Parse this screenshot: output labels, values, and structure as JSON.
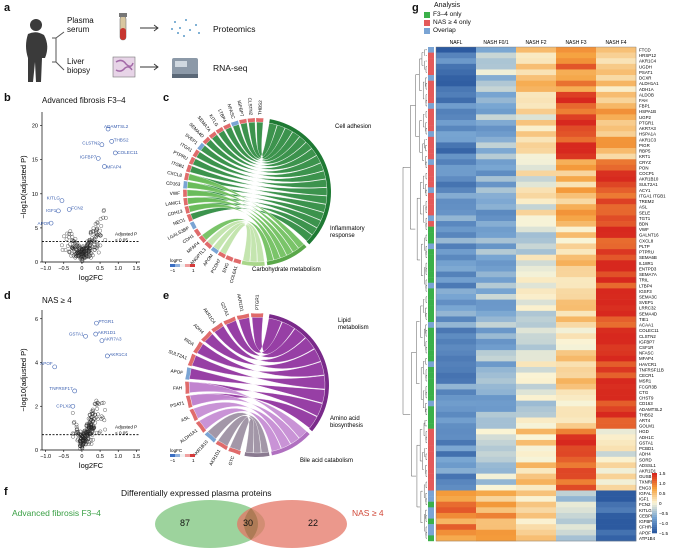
{
  "panels": {
    "a": {
      "letter": "a",
      "plasma_label": "Plasma\nserum",
      "liver_label": "Liver\nbiopsy",
      "proteomics_label": "Proteomics",
      "rnaseq_label": "RNA-seq"
    },
    "b": {
      "letter": "b",
      "title": "Advanced fibrosis F3–4",
      "ylabel": "−log10(adjusted P)",
      "xlabel": "log2FC",
      "threshold_label": "Adjusted P\n< 0.05",
      "x_ticks": [
        "−1.0",
        "−0.5",
        "0",
        "0.5",
        "1.0",
        "1.5"
      ],
      "y_ticks": [
        "0",
        "5",
        "10",
        "15",
        "20"
      ],
      "highlighted_genes": [
        "ADAMTSL2",
        "THBS2",
        "CLSTN2",
        "COLEC11",
        "IGFBP7",
        "MFAP4",
        "KITLG",
        "IGF1",
        "FCN2",
        "APOF"
      ]
    },
    "c": {
      "letter": "c",
      "categories": [
        "Cell adhesion",
        "Inflammatory\nresponse",
        "Carbohydrate metabolism"
      ],
      "genes": [
        "THBS2",
        "CLSTN2",
        "IGFBP7",
        "NFASC",
        "LTBP4",
        "KITLG",
        "SEMA7A",
        "SEMA4D",
        "SVEP1",
        "ITGA1",
        "PTPRU",
        "ITGB1",
        "CXCL8",
        "CD163",
        "VWF",
        "LAMC1",
        "CDH13",
        "NEO1",
        "LGALS3BP",
        "CDH1",
        "MFAP4",
        "ANGPTL3",
        "APOM",
        "PCDH7",
        "ENG",
        "COL6A1"
      ],
      "logfc_legend_title": "logFC",
      "logfc_legend_ticks": [
        "−1",
        "1"
      ]
    },
    "d": {
      "letter": "d",
      "title": "NAS ≥ 4",
      "ylabel": "−log10(adjusted P)",
      "xlabel": "log2FC",
      "threshold_label": "Adjusted P\n< 0.05",
      "x_ticks": [
        "−1.0",
        "−0.5",
        "0",
        "0.5",
        "1.0",
        "1.5"
      ],
      "y_ticks": [
        "0",
        "2",
        "4",
        "6"
      ],
      "highlighted_genes": [
        "GSTA1",
        "PTGR1",
        "AKR1D1",
        "AKR7A3",
        "AKR1C4",
        "APOF",
        "TNFRSF17",
        "CPLX2"
      ]
    },
    "e": {
      "letter": "e",
      "categories": [
        "Lipid\nmetabolism",
        "Amino acid\nbiosynthesis",
        "Bile acid catabolism"
      ],
      "genes": [
        "PTGR1",
        "AKR1D1",
        "GSTA1",
        "AKR1C4",
        "ADH4",
        "RIDA",
        "SULT2A1",
        "APOF",
        "FAH",
        "PSAT1",
        "ASL",
        "ALDH1A1",
        "AKR1B10",
        "AKR1D1",
        "GTC"
      ],
      "logfc_legend_title": "logFC",
      "logfc_legend_ticks": [
        "−1",
        "1"
      ]
    },
    "f": {
      "letter": "f",
      "title": "Differentially expressed plasma proteins",
      "left_label": "Advanced fibrosis F3–4",
      "right_label": "NAS ≥ 4",
      "left_only": "87",
      "overlap": "30",
      "right_only": "22"
    },
    "g": {
      "letter": "g",
      "analysis_title": "Analysis",
      "legend": [
        {
          "label": "F3–4 only",
          "color": "#3bb04a"
        },
        {
          "label": "NAS ≥ 4 only",
          "color": "#e45a5a"
        },
        {
          "label": "Overlap",
          "color": "#7aa4d4"
        }
      ],
      "columns": [
        "NAFL",
        "NASH F0/1",
        "NASH F2",
        "NASH F3",
        "NASH F4"
      ],
      "rows": [
        "FTCD",
        "HRSP12",
        "AKR1C4",
        "UGDH",
        "PSAT1",
        "DCXR",
        "ALDH1A1",
        "ADH1A",
        "ALDOB",
        "FAH",
        "FBP1",
        "HSPA1B",
        "UGP2",
        "PTGR1",
        "AKR7A3",
        "HSPA1A",
        "AKR1C3",
        "PIGR",
        "RBP5",
        "KRT1",
        "CRYZ",
        "PON",
        "COCP1",
        "AKR1B10",
        "SULT2A1",
        "ACY1",
        "ITGA1 ITGB1",
        "TREM2",
        "ASL",
        "SELE",
        "TGT1",
        "BDN",
        "VWF",
        "GALNT16",
        "CXCL8",
        "PLTP",
        "PTPRU",
        "SEMA6B",
        "IL18R1",
        "ENTPD3",
        "SEMA7A",
        "TRIL",
        "LTBP4",
        "IGSF3",
        "SEMA3C",
        "SVEP1",
        "LRRC32",
        "SEMA4D",
        "TIE1",
        "ACAA1",
        "COLEC11",
        "CLSTN2",
        "IGFBP7",
        "CSF1R",
        "NFASC",
        "MFAP4",
        "HAVCR1",
        "TNFRSF11B",
        "CECR1",
        "MSR1",
        "FCGR3B",
        "CTG",
        "CHST9",
        "CD163",
        "ADAMTSL2",
        "THBS2",
        "ART4",
        "GOLM1",
        "HGD",
        "ADH1C",
        "GSTA1",
        "PCBD1",
        "ADH4",
        "SORD",
        "ADSSL1",
        "AKR1D1",
        "GUSB",
        "TXNRD1",
        "ENG3",
        "IGFALS",
        "IGF1",
        "FCN2",
        "KITLG",
        "CEBPB",
        "IGFBP5",
        "CFHR4",
        "APOF",
        "ATP1B4"
      ],
      "colorbar_ticks": [
        "1.5",
        "1.0",
        "0.5",
        "0",
        "−0.5",
        "−1.0",
        "−1.5"
      ]
    }
  }
}
